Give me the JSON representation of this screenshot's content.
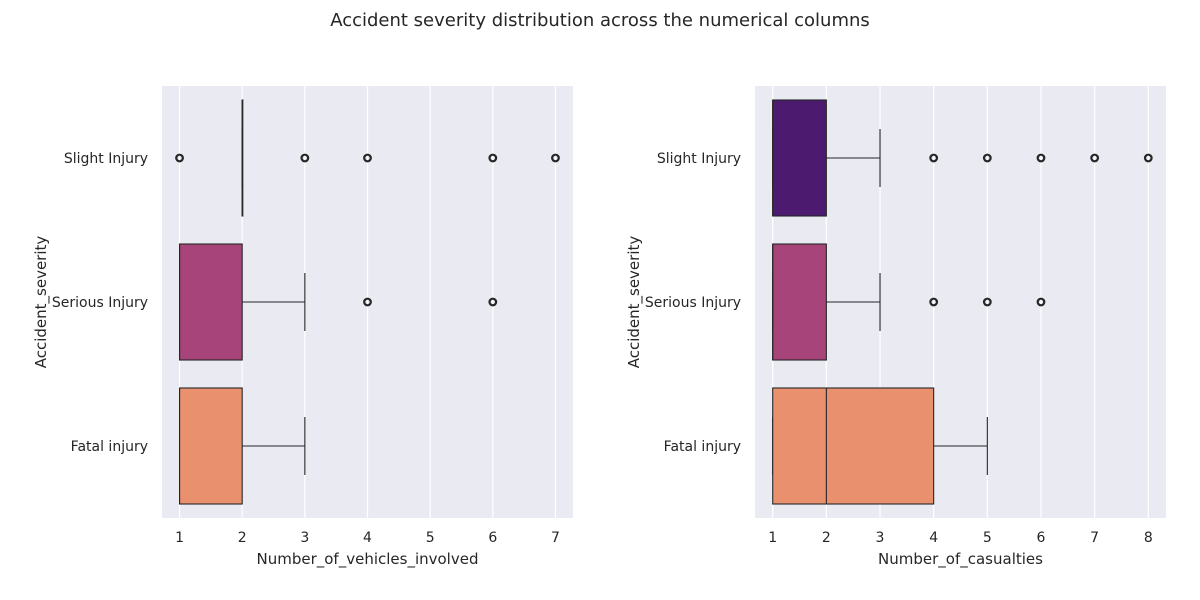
{
  "chart_data": {
    "title": "Accident severity distribution across the numerical columns",
    "type": "boxplot",
    "orientation": "horizontal",
    "categories": [
      "Slight Injury",
      "Serious Injury",
      "Fatal injury"
    ],
    "colors": [
      "#4c1a6e",
      "#a7447a",
      "#e9916f"
    ],
    "grid": true,
    "panels": [
      {
        "xlabel": "Number_of_vehicles_involved",
        "ylabel": "Accident_severity",
        "xlim": [
          0.72,
          7.28
        ],
        "xticks": [
          1,
          2,
          3,
          4,
          5,
          6,
          7
        ],
        "boxes": [
          {
            "category": "Slight Injury",
            "whislo": 2,
            "q1": 2,
            "med": 2,
            "q3": 2,
            "whishi": 2,
            "fliers": [
              1,
              3,
              4,
              6,
              7
            ]
          },
          {
            "category": "Serious Injury",
            "whislo": 1,
            "q1": 1,
            "med": 1,
            "q3": 2,
            "whishi": 3,
            "fliers": [
              4,
              6
            ]
          },
          {
            "category": "Fatal injury",
            "whislo": 1,
            "q1": 1,
            "med": 1,
            "q3": 2,
            "whishi": 3,
            "fliers": []
          }
        ]
      },
      {
        "xlabel": "Number_of_casualties",
        "ylabel": "Accident_severity",
        "xlim": [
          0.67,
          8.33
        ],
        "xticks": [
          1,
          2,
          3,
          4,
          5,
          6,
          7,
          8
        ],
        "boxes": [
          {
            "category": "Slight Injury",
            "whislo": 1,
            "q1": 1,
            "med": 1,
            "q3": 2,
            "whishi": 3,
            "fliers": [
              4,
              5,
              6,
              7,
              8
            ]
          },
          {
            "category": "Serious Injury",
            "whislo": 1,
            "q1": 1,
            "med": 1,
            "q3": 2,
            "whishi": 3,
            "fliers": [
              4,
              5,
              6
            ]
          },
          {
            "category": "Fatal injury",
            "whislo": 1,
            "q1": 1,
            "med": 2,
            "q3": 4,
            "whishi": 5,
            "fliers": []
          }
        ]
      }
    ]
  }
}
